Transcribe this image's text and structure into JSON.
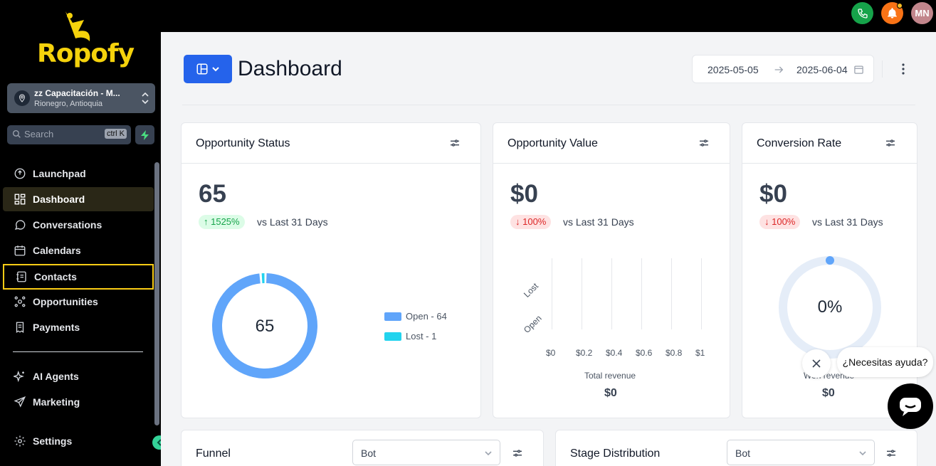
{
  "brand": {
    "name": "Ropofy",
    "accent": "#f5d20c"
  },
  "topbar": {
    "avatar_initials": "MN",
    "phone_color": "#16a34a",
    "bell_color": "#f97316"
  },
  "location": {
    "name": "zz Capacitación - M...",
    "sub": "Rionegro, Antioquia"
  },
  "search": {
    "placeholder": "Search",
    "shortcut": "ctrl K"
  },
  "sidebar": {
    "items": [
      {
        "label": "Launchpad",
        "icon": "rocket-icon"
      },
      {
        "label": "Dashboard",
        "icon": "grid-icon",
        "active": true
      },
      {
        "label": "Conversations",
        "icon": "chat-icon"
      },
      {
        "label": "Calendars",
        "icon": "calendar-icon"
      },
      {
        "label": "Contacts",
        "icon": "contacts-icon",
        "highlighted": true
      },
      {
        "label": "Opportunities",
        "icon": "opportunities-icon"
      },
      {
        "label": "Payments",
        "icon": "payments-icon"
      },
      {
        "label": "AI Agents",
        "icon": "sparkles-icon"
      },
      {
        "label": "Marketing",
        "icon": "send-icon"
      }
    ],
    "settings_label": "Settings"
  },
  "header": {
    "title": "Dashboard",
    "date_from": "2025-05-05",
    "date_to": "2025-06-04"
  },
  "cards": {
    "opportunity_status": {
      "title": "Opportunity Status",
      "value": "65",
      "delta": "↑ 1525%",
      "vs": "vs Last 31 Days",
      "center_label": "65",
      "legend": [
        {
          "label": "Open - 64",
          "color": "#60a5fa"
        },
        {
          "label": "Lost - 1",
          "color": "#22d3ee"
        }
      ]
    },
    "opportunity_value": {
      "title": "Opportunity Value",
      "value": "$0",
      "delta": "↓ 100%",
      "vs": "vs Last 31 Days",
      "y_labels": [
        "Lost",
        "Open"
      ],
      "x_ticks": [
        "$0",
        "$0.2",
        "$0.4",
        "$0.6",
        "$0.8",
        "$1"
      ],
      "revenue_label": "Total revenue",
      "revenue_value": "$0"
    },
    "conversion_rate": {
      "title": "Conversion Rate",
      "value": "$0",
      "delta": "↓ 100%",
      "vs": "vs Last 31 Days",
      "gauge_label": "0%",
      "revenue_label": "Won revenue",
      "revenue_value": "$0"
    },
    "funnel": {
      "title": "Funnel",
      "select_value": "Bot"
    },
    "stage_distribution": {
      "title": "Stage Distribution",
      "select_value": "Bot"
    }
  },
  "chat": {
    "prompt": "¿Necesitas ayuda?"
  },
  "chart_data": [
    {
      "type": "pie",
      "categories": [
        "Open",
        "Lost"
      ],
      "values": [
        64,
        1
      ],
      "title": "Opportunity Status"
    },
    {
      "type": "bar",
      "categories": [
        "Lost",
        "Open"
      ],
      "values": [
        0,
        0
      ],
      "title": "Opportunity Value",
      "xlabel": "Total revenue",
      "xlim": [
        0,
        1
      ]
    }
  ]
}
